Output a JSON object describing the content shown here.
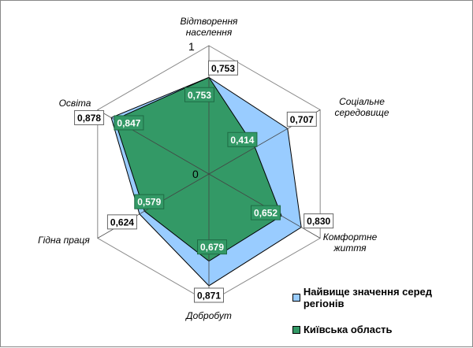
{
  "chart_data": {
    "type": "radar",
    "axes": [
      "Відтворення населення",
      "Соціальне середовище",
      "Комфортне життя",
      "Добробут",
      "Гідна праця",
      "Освіта"
    ],
    "range": [
      0,
      1
    ],
    "tick_labels": [
      "0",
      "1"
    ],
    "series": [
      {
        "name": "Найвище значення серед регіонів",
        "color": "#99CCFF",
        "values": [
          0.753,
          0.707,
          0.83,
          0.871,
          0.624,
          0.878
        ],
        "labels": [
          "0,753",
          "0,707",
          "0,830",
          "0,871",
          "0,624",
          "0,878"
        ]
      },
      {
        "name": "Київська область",
        "color": "#339966",
        "values": [
          0.753,
          0.414,
          0.652,
          0.679,
          0.579,
          0.847
        ],
        "labels": [
          "0,753",
          "0,414",
          "0,652",
          "0,679",
          "0,579",
          "0,847"
        ]
      }
    ],
    "legend_position": "bottom-right"
  }
}
